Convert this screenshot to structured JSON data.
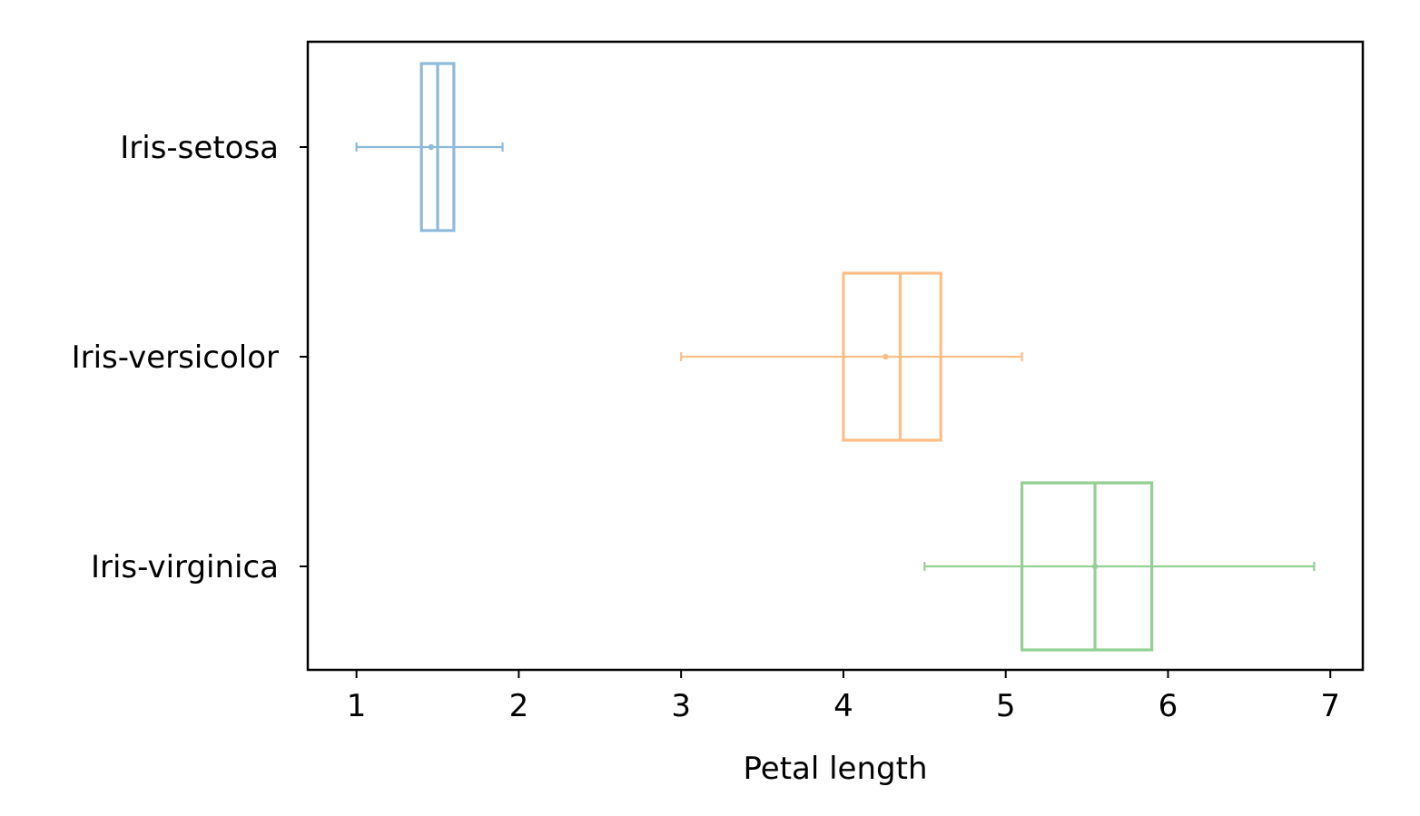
{
  "chart_data": {
    "type": "box",
    "orientation": "horizontal",
    "title": "",
    "xlabel": "Petal length",
    "ylabel": "",
    "xlim": [
      0.7,
      7.2
    ],
    "x_ticks": [
      1,
      2,
      3,
      4,
      5,
      6,
      7
    ],
    "grid": false,
    "legend": "none",
    "categories": [
      "Iris-setosa",
      "Iris-versicolor",
      "Iris-virginica"
    ],
    "series": [
      {
        "category": "Iris-setosa",
        "color": "#1f77b4",
        "min": 1.0,
        "q1": 1.4,
        "median": 1.5,
        "q3": 1.6,
        "max": 1.9,
        "mean": 1.46
      },
      {
        "category": "Iris-versicolor",
        "color": "#ff7f0e",
        "min": 3.0,
        "q1": 4.0,
        "median": 4.35,
        "q3": 4.6,
        "max": 5.1,
        "mean": 4.26
      },
      {
        "category": "Iris-virginica",
        "color": "#2ca02c",
        "min": 4.5,
        "q1": 5.1,
        "median": 5.55,
        "q3": 5.9,
        "max": 6.9,
        "mean": 5.55
      }
    ]
  }
}
